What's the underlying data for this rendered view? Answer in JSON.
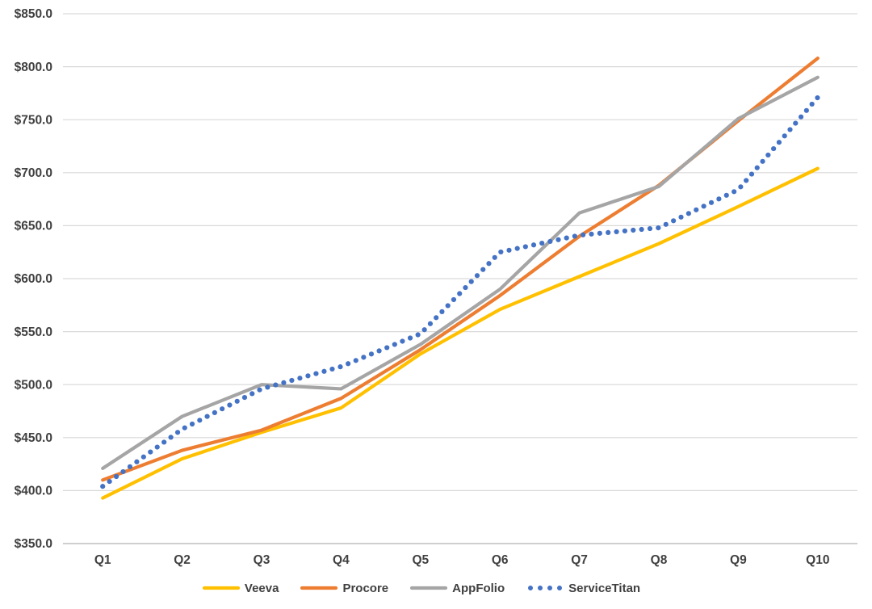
{
  "chart_data": {
    "type": "line",
    "title": "",
    "categories": [
      "Q1",
      "Q2",
      "Q3",
      "Q4",
      "Q5",
      "Q6",
      "Q7",
      "Q8",
      "Q9",
      "Q10"
    ],
    "series": [
      {
        "name": "Veeva",
        "color": "#FFC000",
        "line_style": "solid",
        "values": [
          393,
          430,
          455,
          478,
          529,
          571,
          602,
          633,
          668,
          704
        ]
      },
      {
        "name": "Procore",
        "color": "#ED7D31",
        "line_style": "solid",
        "values": [
          410,
          438,
          457,
          487,
          533,
          584,
          640,
          688,
          749,
          808
        ]
      },
      {
        "name": "AppFolio",
        "color": "#A5A5A5",
        "line_style": "solid",
        "values": [
          421,
          470,
          500,
          496,
          538,
          590,
          662,
          687,
          751,
          790
        ]
      },
      {
        "name": "ServiceTitan",
        "color": "#4472C4",
        "line_style": "dotted",
        "values": [
          404,
          458,
          496,
          517,
          548,
          625,
          641,
          648,
          684,
          771
        ]
      }
    ],
    "y_axis": {
      "min": 350,
      "max": 850,
      "step": 50,
      "tick_labels": [
        "$850.0",
        "$800.0",
        "$750.0",
        "$700.0",
        "$650.0",
        "$600.0",
        "$550.0",
        "$500.0",
        "$450.0",
        "$400.0",
        "$350.0"
      ],
      "format": "$0.0"
    },
    "x_axis": {
      "labels": [
        "Q1",
        "Q2",
        "Q3",
        "Q4",
        "Q5",
        "Q6",
        "Q7",
        "Q8",
        "Q9",
        "Q10"
      ]
    },
    "legend": {
      "position": "bottom",
      "entries": [
        "Veeva",
        "Procore",
        "AppFolio",
        "ServiceTitan"
      ]
    },
    "grid": true,
    "colors": {
      "gridline": "#d9d9d9",
      "axis_line": "#bfbfbf",
      "label_text": "#404040",
      "background": "#ffffff"
    }
  }
}
